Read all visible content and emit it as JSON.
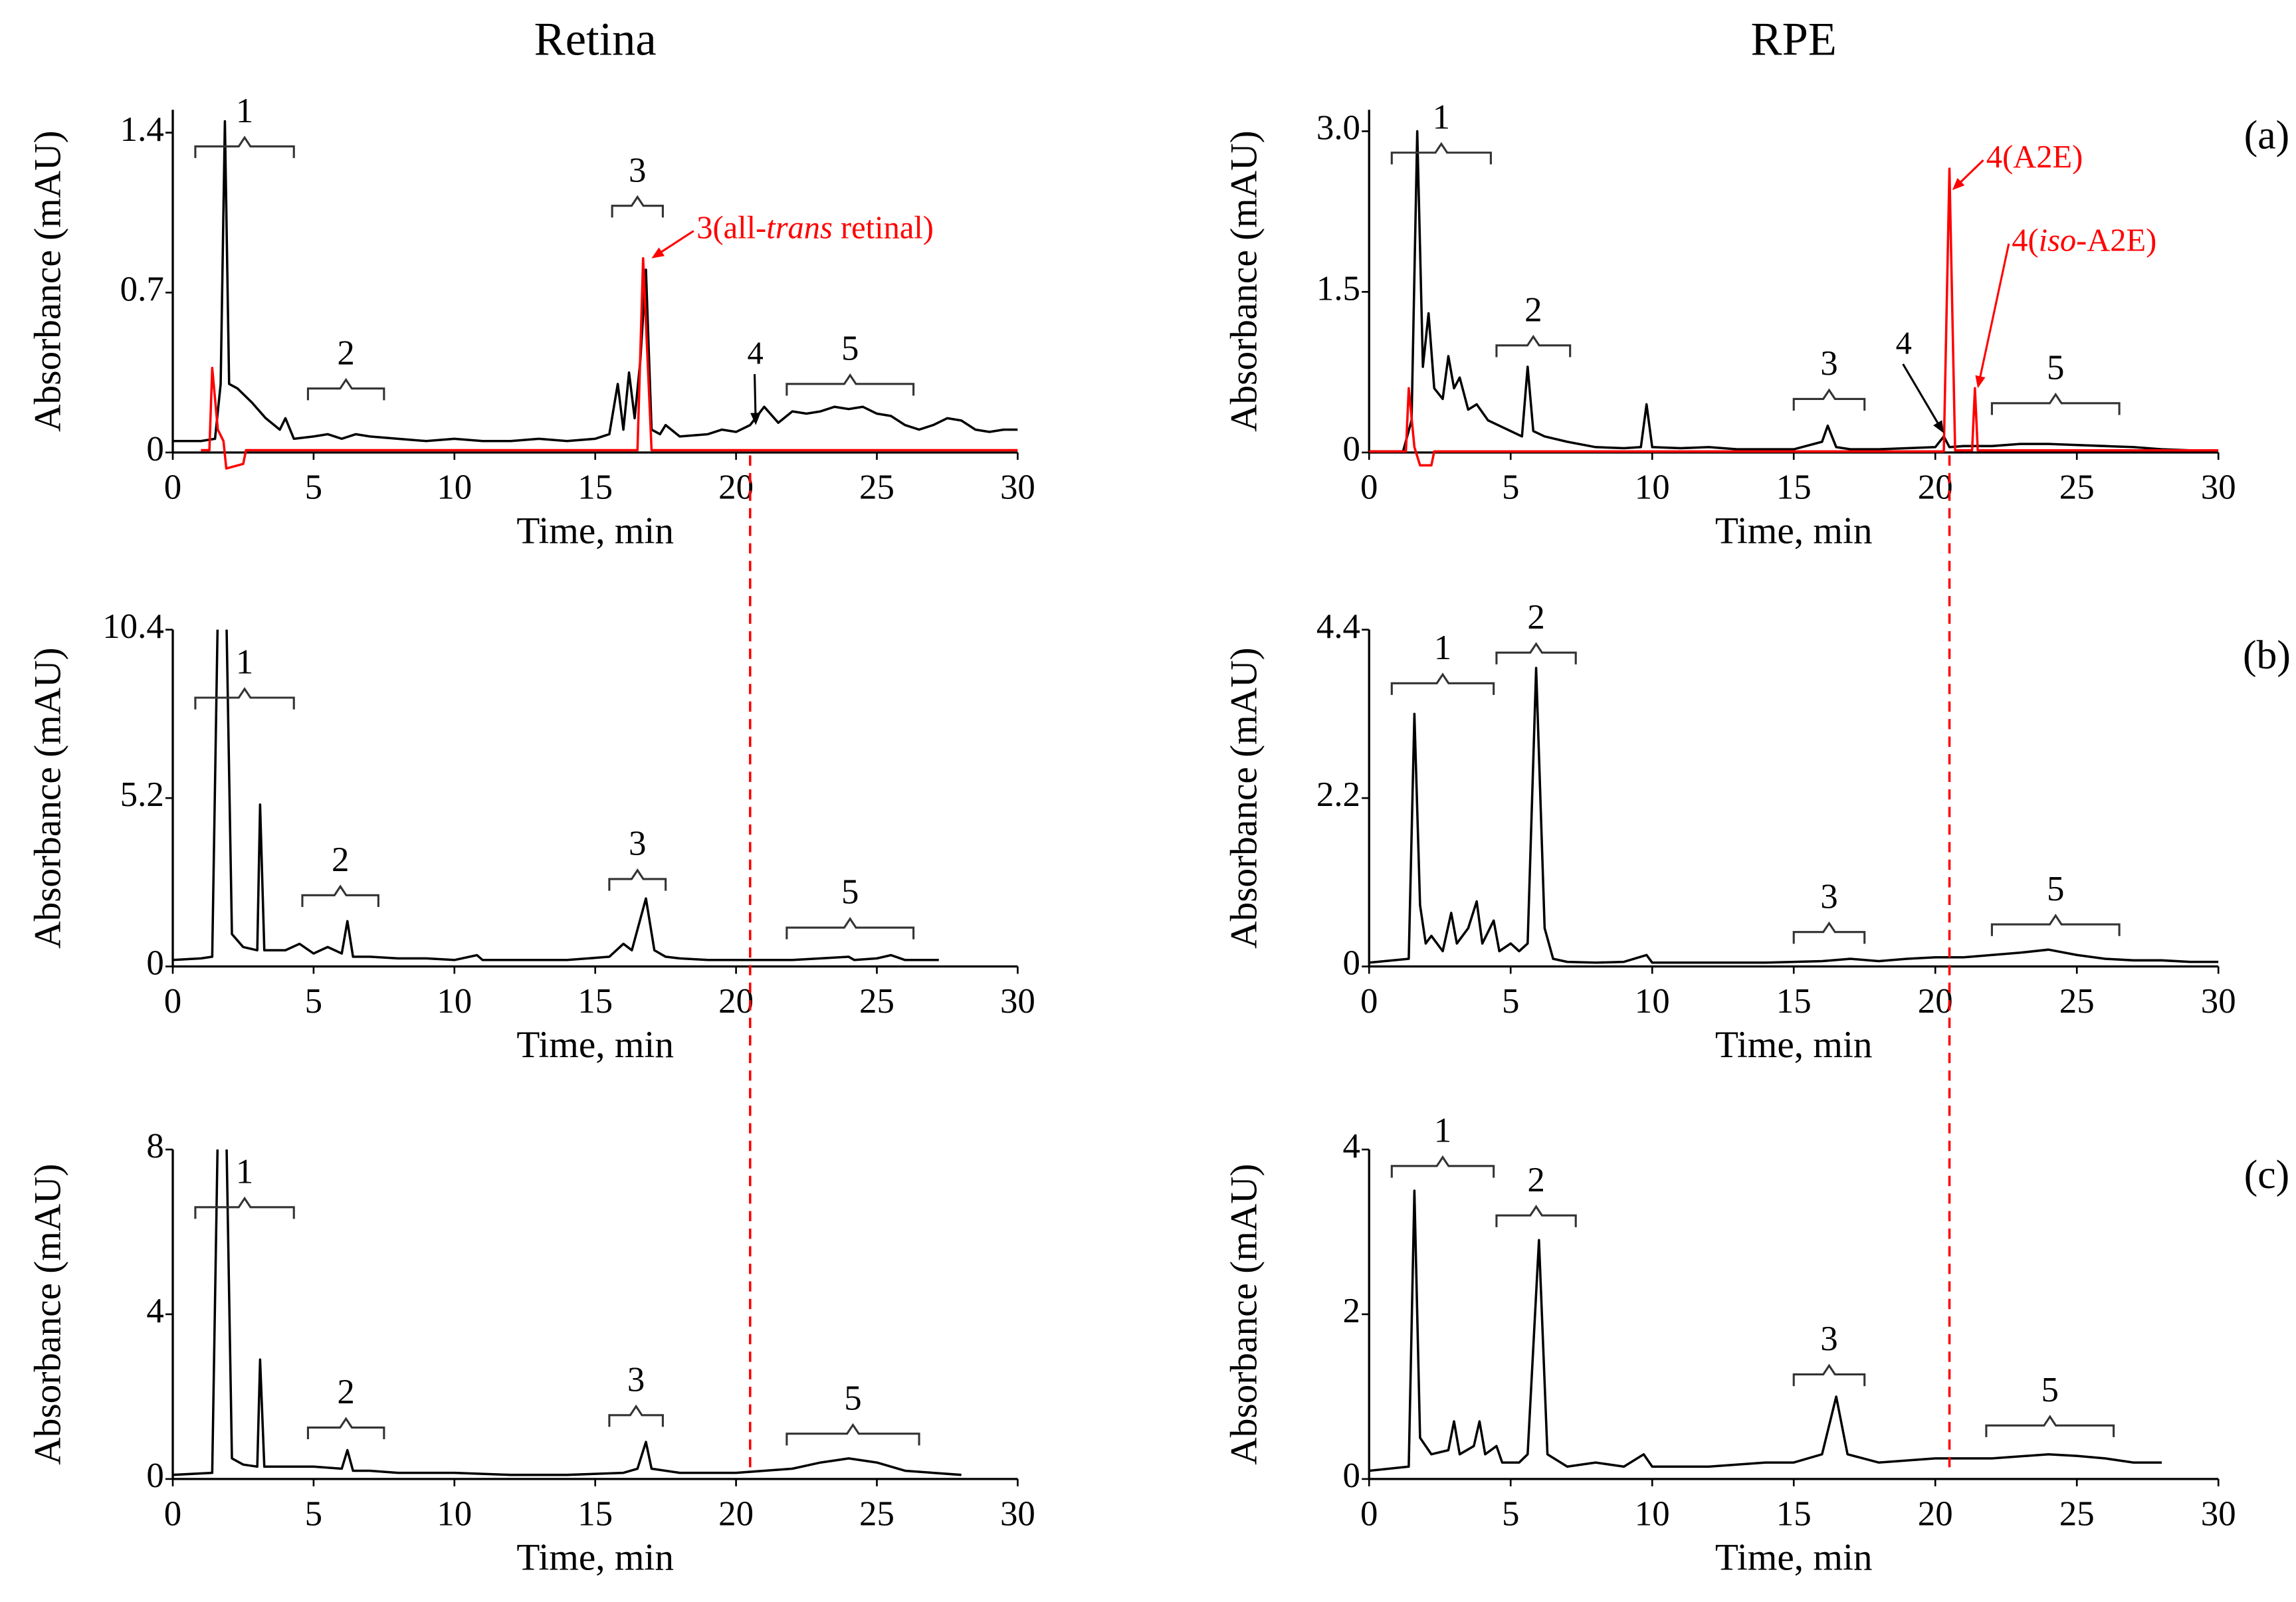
{
  "reference_line": {
    "x": 20.5,
    "color": "#ff0000"
  },
  "chart_data": [
    {
      "type": "line",
      "title": "Retina",
      "xlabel": "Time, min",
      "ylabel": "Absorbance (mAU)",
      "xlim": [
        0,
        30
      ],
      "xticks": [
        0,
        5,
        10,
        15,
        20,
        25,
        30
      ],
      "ylim": [
        0,
        1.5
      ],
      "yticks": [
        0,
        0.7,
        1.4
      ],
      "series": [
        {
          "color": "#000000",
          "x": [
            0,
            1,
            1.5,
            1.7,
            1.85,
            2.0,
            2.3,
            2.8,
            3.3,
            3.8,
            4.0,
            4.3,
            5,
            5.5,
            6,
            6.5,
            7,
            8,
            9,
            10,
            11,
            12,
            13,
            14,
            15,
            15.5,
            15.8,
            16.0,
            16.2,
            16.4,
            16.6,
            16.8,
            17.0,
            17.3,
            17.5,
            18,
            19,
            19.5,
            20,
            20.5,
            21,
            21.5,
            22,
            22.5,
            23,
            23.5,
            24,
            24.5,
            25,
            25.5,
            26,
            26.5,
            27,
            27.5,
            28,
            28.5,
            29,
            29.5,
            30
          ],
          "values": [
            0.05,
            0.05,
            0.06,
            0.3,
            1.45,
            0.3,
            0.28,
            0.22,
            0.15,
            0.1,
            0.15,
            0.06,
            0.07,
            0.08,
            0.06,
            0.08,
            0.07,
            0.06,
            0.05,
            0.06,
            0.05,
            0.05,
            0.06,
            0.05,
            0.06,
            0.08,
            0.3,
            0.1,
            0.35,
            0.15,
            0.4,
            0.8,
            0.1,
            0.08,
            0.12,
            0.07,
            0.08,
            0.1,
            0.09,
            0.12,
            0.2,
            0.13,
            0.18,
            0.17,
            0.18,
            0.2,
            0.19,
            0.2,
            0.17,
            0.16,
            0.12,
            0.1,
            0.12,
            0.15,
            0.14,
            0.1,
            0.09,
            0.1,
            0.1
          ]
        },
        {
          "color": "#ff0000",
          "x": [
            1,
            1.3,
            1.4,
            1.6,
            1.8,
            1.9,
            2.5,
            2.6,
            16.0,
            16.5,
            16.7,
            17.0,
            30
          ],
          "values": [
            0.01,
            0.01,
            0.37,
            0.1,
            0.05,
            -0.07,
            -0.05,
            0.01,
            0.01,
            0.01,
            0.85,
            0.01,
            0.01
          ]
        }
      ],
      "brackets": [
        {
          "label": "1",
          "x": [
            0.8,
            4.3
          ],
          "y": 1.34
        },
        {
          "label": "2",
          "x": [
            4.8,
            7.5
          ],
          "y": 0.28
        },
        {
          "label": "3",
          "x": [
            15.6,
            17.4
          ],
          "y": 1.08
        },
        {
          "label": "5",
          "x": [
            21.8,
            26.3
          ],
          "y": 0.3
        }
      ],
      "annotations": [
        {
          "label_parts": [
            "4"
          ],
          "text_xy": [
            20.4,
            0.42
          ],
          "xy": [
            20.7,
            0.12
          ],
          "color": "#000000"
        },
        {
          "label_parts": [
            "3(all-",
            "trans",
            " retinal)"
          ],
          "text_xy": [
            18.6,
            0.97
          ],
          "xy": [
            17.0,
            0.85
          ],
          "color": "#ff0000"
        }
      ]
    },
    {
      "type": "line",
      "title": "RPE",
      "panel_label": "(a)",
      "xlabel": "Time, min",
      "ylabel": "Absorbance (mAU)",
      "xlim": [
        0,
        30
      ],
      "xticks": [
        0,
        5,
        10,
        15,
        20,
        25,
        30
      ],
      "ylim": [
        0,
        3.2
      ],
      "yticks": [
        0,
        1.5,
        {
          "value": 3,
          "label": "3.0"
        }
      ],
      "series": [
        {
          "color": "#000000",
          "x": [
            0,
            1.2,
            1.5,
            1.7,
            1.9,
            2.1,
            2.3,
            2.6,
            2.8,
            3.0,
            3.2,
            3.5,
            3.8,
            4.2,
            4.6,
            5.0,
            5.4,
            5.6,
            5.8,
            6.2,
            7,
            8,
            9,
            9.6,
            9.8,
            10.0,
            11,
            12,
            13,
            14,
            15,
            16,
            16.2,
            16.5,
            17,
            18,
            19,
            20,
            20.3,
            20.5,
            21,
            22,
            23,
            24,
            25,
            26,
            27,
            28,
            29,
            29.5
          ],
          "values": [
            0.01,
            0.01,
            0.3,
            3.0,
            0.8,
            1.3,
            0.6,
            0.5,
            0.9,
            0.6,
            0.7,
            0.4,
            0.45,
            0.3,
            0.25,
            0.2,
            0.15,
            0.8,
            0.2,
            0.15,
            0.1,
            0.05,
            0.04,
            0.05,
            0.45,
            0.05,
            0.04,
            0.05,
            0.03,
            0.03,
            0.03,
            0.1,
            0.25,
            0.05,
            0.03,
            0.03,
            0.04,
            0.05,
            0.15,
            0.05,
            0.06,
            0.06,
            0.08,
            0.08,
            0.07,
            0.06,
            0.05,
            0.03,
            0.02,
            0.01
          ]
        },
        {
          "color": "#ff0000",
          "x": [
            0,
            1.3,
            1.4,
            1.6,
            1.8,
            2.2,
            2.3,
            20.3,
            20.5,
            20.7,
            21.3,
            21.4,
            21.5,
            30
          ],
          "values": [
            0.01,
            0.01,
            0.6,
            0.05,
            -0.12,
            -0.12,
            0.01,
            0.01,
            2.65,
            0.02,
            0.02,
            0.6,
            0.02,
            0.02
          ]
        }
      ],
      "brackets": [
        {
          "label": "1",
          "x": [
            0.8,
            4.3
          ],
          "y": 2.8
        },
        {
          "label": "2",
          "x": [
            4.5,
            7.1
          ],
          "y": 1.0
        },
        {
          "label": "3",
          "x": [
            15,
            17.5
          ],
          "y": 0.5
        },
        {
          "label": "5",
          "x": [
            22,
            26.5
          ],
          "y": 0.46
        }
      ],
      "annotations": [
        {
          "label_parts": [
            "4(A2E)"
          ],
          "text_xy": [
            21.8,
            2.73
          ],
          "xy": [
            20.6,
            2.45
          ],
          "color": "#ff0000"
        },
        {
          "label_parts": [
            "4(",
            "iso",
            "-A2E)"
          ],
          "text_xy": [
            22.7,
            1.95
          ],
          "xy": [
            21.5,
            0.6
          ],
          "color": "#ff0000"
        },
        {
          "label_parts": [
            "4"
          ],
          "text_xy": [
            18.6,
            0.99
          ],
          "xy": [
            20.3,
            0.18
          ],
          "color": "#000000"
        }
      ]
    },
    {
      "type": "line",
      "xlabel": "Time, min",
      "ylabel": "Absorbance (mAU)",
      "xlim": [
        0,
        30
      ],
      "xticks": [
        0,
        5,
        10,
        15,
        20,
        25,
        30
      ],
      "ylim": [
        0,
        10.4
      ],
      "yticks": [
        0,
        5.2,
        10.4
      ],
      "series": [
        {
          "color": "#000000",
          "x": [
            0,
            1,
            1.4,
            1.6,
            1.9,
            2.1,
            2.5,
            3.0,
            3.1,
            3.25,
            4,
            4.5,
            5,
            5.5,
            6,
            6.2,
            6.4,
            7,
            8,
            9,
            10,
            10.8,
            11,
            12,
            14,
            15.5,
            16,
            16.3,
            16.8,
            17.1,
            17.5,
            18,
            19,
            20,
            21,
            22,
            23,
            24,
            24.2,
            25,
            25.5,
            26,
            27.2
          ],
          "values": [
            0.2,
            0.25,
            0.3,
            11,
            11,
            1.0,
            0.6,
            0.5,
            5.0,
            0.5,
            0.5,
            0.7,
            0.4,
            0.6,
            0.4,
            1.4,
            0.3,
            0.3,
            0.25,
            0.25,
            0.2,
            0.35,
            0.2,
            0.2,
            0.2,
            0.3,
            0.7,
            0.5,
            2.1,
            0.5,
            0.3,
            0.25,
            0.2,
            0.2,
            0.2,
            0.2,
            0.25,
            0.3,
            0.2,
            0.25,
            0.35,
            0.2,
            0.2
          ]
        }
      ],
      "brackets": [
        {
          "label": "1",
          "x": [
            0.8,
            4.3
          ],
          "y": 8.3
        },
        {
          "label": "2",
          "x": [
            4.6,
            7.3
          ],
          "y": 2.2
        },
        {
          "label": "3",
          "x": [
            15.5,
            17.5
          ],
          "y": 2.7
        },
        {
          "label": "5",
          "x": [
            21.8,
            26.3
          ],
          "y": 1.2
        }
      ]
    },
    {
      "type": "line",
      "panel_label": "(b)",
      "xlabel": "Time, min",
      "ylabel": "Absorbance (mAU)",
      "xlim": [
        0,
        30
      ],
      "xticks": [
        0,
        5,
        10,
        15,
        20,
        25,
        30
      ],
      "ylim": [
        0,
        4.4
      ],
      "yticks": [
        0,
        2.2,
        4.4
      ],
      "series": [
        {
          "color": "#000000",
          "x": [
            0,
            1.4,
            1.6,
            1.8,
            2.0,
            2.2,
            2.6,
            2.9,
            3.1,
            3.5,
            3.8,
            4.0,
            4.4,
            4.6,
            5,
            5.3,
            5.6,
            5.9,
            6.2,
            6.5,
            7,
            8,
            9,
            9.8,
            10,
            12,
            14,
            16,
            17,
            18,
            19,
            20,
            21,
            22,
            23,
            24,
            25,
            26,
            27,
            28,
            29,
            30
          ],
          "values": [
            0.05,
            0.1,
            3.3,
            0.8,
            0.3,
            0.4,
            0.2,
            0.7,
            0.3,
            0.5,
            0.85,
            0.3,
            0.6,
            0.2,
            0.3,
            0.2,
            0.3,
            3.9,
            0.5,
            0.1,
            0.06,
            0.05,
            0.06,
            0.15,
            0.05,
            0.05,
            0.05,
            0.07,
            0.1,
            0.07,
            0.1,
            0.12,
            0.12,
            0.15,
            0.18,
            0.22,
            0.15,
            0.1,
            0.08,
            0.08,
            0.06,
            0.06
          ]
        }
      ],
      "brackets": [
        {
          "label": "1",
          "x": [
            0.8,
            4.4
          ],
          "y": 3.7
        },
        {
          "label": "2",
          "x": [
            4.5,
            7.3
          ],
          "y": 4.1
        },
        {
          "label": "3",
          "x": [
            15,
            17.5
          ],
          "y": 0.45
        },
        {
          "label": "5",
          "x": [
            22,
            26.5
          ],
          "y": 0.55
        }
      ]
    },
    {
      "type": "line",
      "xlabel": "Time, min",
      "ylabel": "Absorbance (mAU)",
      "xlim": [
        0,
        30
      ],
      "xticks": [
        0,
        5,
        10,
        15,
        20,
        25,
        30
      ],
      "ylim": [
        0,
        8
      ],
      "yticks": [
        0,
        4,
        8
      ],
      "series": [
        {
          "color": "#000000",
          "x": [
            0,
            1.4,
            1.6,
            1.9,
            2.1,
            2.5,
            3.0,
            3.1,
            3.25,
            4,
            5,
            6,
            6.2,
            6.4,
            7,
            8,
            10,
            12,
            14,
            16,
            16.5,
            16.8,
            17,
            18,
            20,
            21,
            22,
            23,
            24,
            25,
            26,
            27,
            28
          ],
          "values": [
            0.1,
            0.15,
            8.5,
            8.5,
            0.5,
            0.35,
            0.3,
            2.9,
            0.3,
            0.3,
            0.3,
            0.25,
            0.7,
            0.2,
            0.2,
            0.15,
            0.15,
            0.1,
            0.1,
            0.15,
            0.25,
            0.9,
            0.25,
            0.15,
            0.15,
            0.2,
            0.25,
            0.4,
            0.5,
            0.4,
            0.2,
            0.15,
            0.1
          ]
        }
      ],
      "brackets": [
        {
          "label": "1",
          "x": [
            0.8,
            4.3
          ],
          "y": 6.6
        },
        {
          "label": "2",
          "x": [
            4.8,
            7.5
          ],
          "y": 1.25
        },
        {
          "label": "3",
          "x": [
            15.5,
            17.4
          ],
          "y": 1.55
        },
        {
          "label": "5",
          "x": [
            21.8,
            26.5
          ],
          "y": 1.1
        }
      ]
    },
    {
      "type": "line",
      "panel_label": "(c)",
      "xlabel": "Time, min",
      "ylabel": "Absorbance (mAU)",
      "xlim": [
        0,
        30
      ],
      "xticks": [
        0,
        5,
        10,
        15,
        20,
        25,
        30
      ],
      "ylim": [
        0,
        4
      ],
      "yticks": [
        0,
        2,
        4
      ],
      "series": [
        {
          "color": "#000000",
          "x": [
            0,
            1.4,
            1.6,
            1.8,
            2.2,
            2.8,
            3.0,
            3.2,
            3.7,
            3.9,
            4.1,
            4.5,
            4.7,
            5.3,
            5.6,
            6.0,
            6.3,
            7,
            8,
            9,
            9.7,
            10,
            12,
            14,
            15,
            16,
            16.5,
            16.9,
            18,
            20,
            22,
            24,
            25,
            26,
            27,
            28
          ],
          "values": [
            0.1,
            0.15,
            3.5,
            0.5,
            0.3,
            0.35,
            0.7,
            0.3,
            0.4,
            0.7,
            0.3,
            0.4,
            0.2,
            0.2,
            0.3,
            2.9,
            0.3,
            0.15,
            0.2,
            0.15,
            0.3,
            0.15,
            0.15,
            0.2,
            0.2,
            0.3,
            1.0,
            0.3,
            0.2,
            0.25,
            0.25,
            0.3,
            0.28,
            0.25,
            0.2,
            0.2
          ]
        }
      ],
      "brackets": [
        {
          "label": "1",
          "x": [
            0.8,
            4.4
          ],
          "y": 3.8
        },
        {
          "label": "2",
          "x": [
            4.5,
            7.3
          ],
          "y": 3.2
        },
        {
          "label": "3",
          "x": [
            15,
            17.5
          ],
          "y": 1.27
        },
        {
          "label": "5",
          "x": [
            21.8,
            26.3
          ],
          "y": 0.65
        }
      ]
    }
  ]
}
